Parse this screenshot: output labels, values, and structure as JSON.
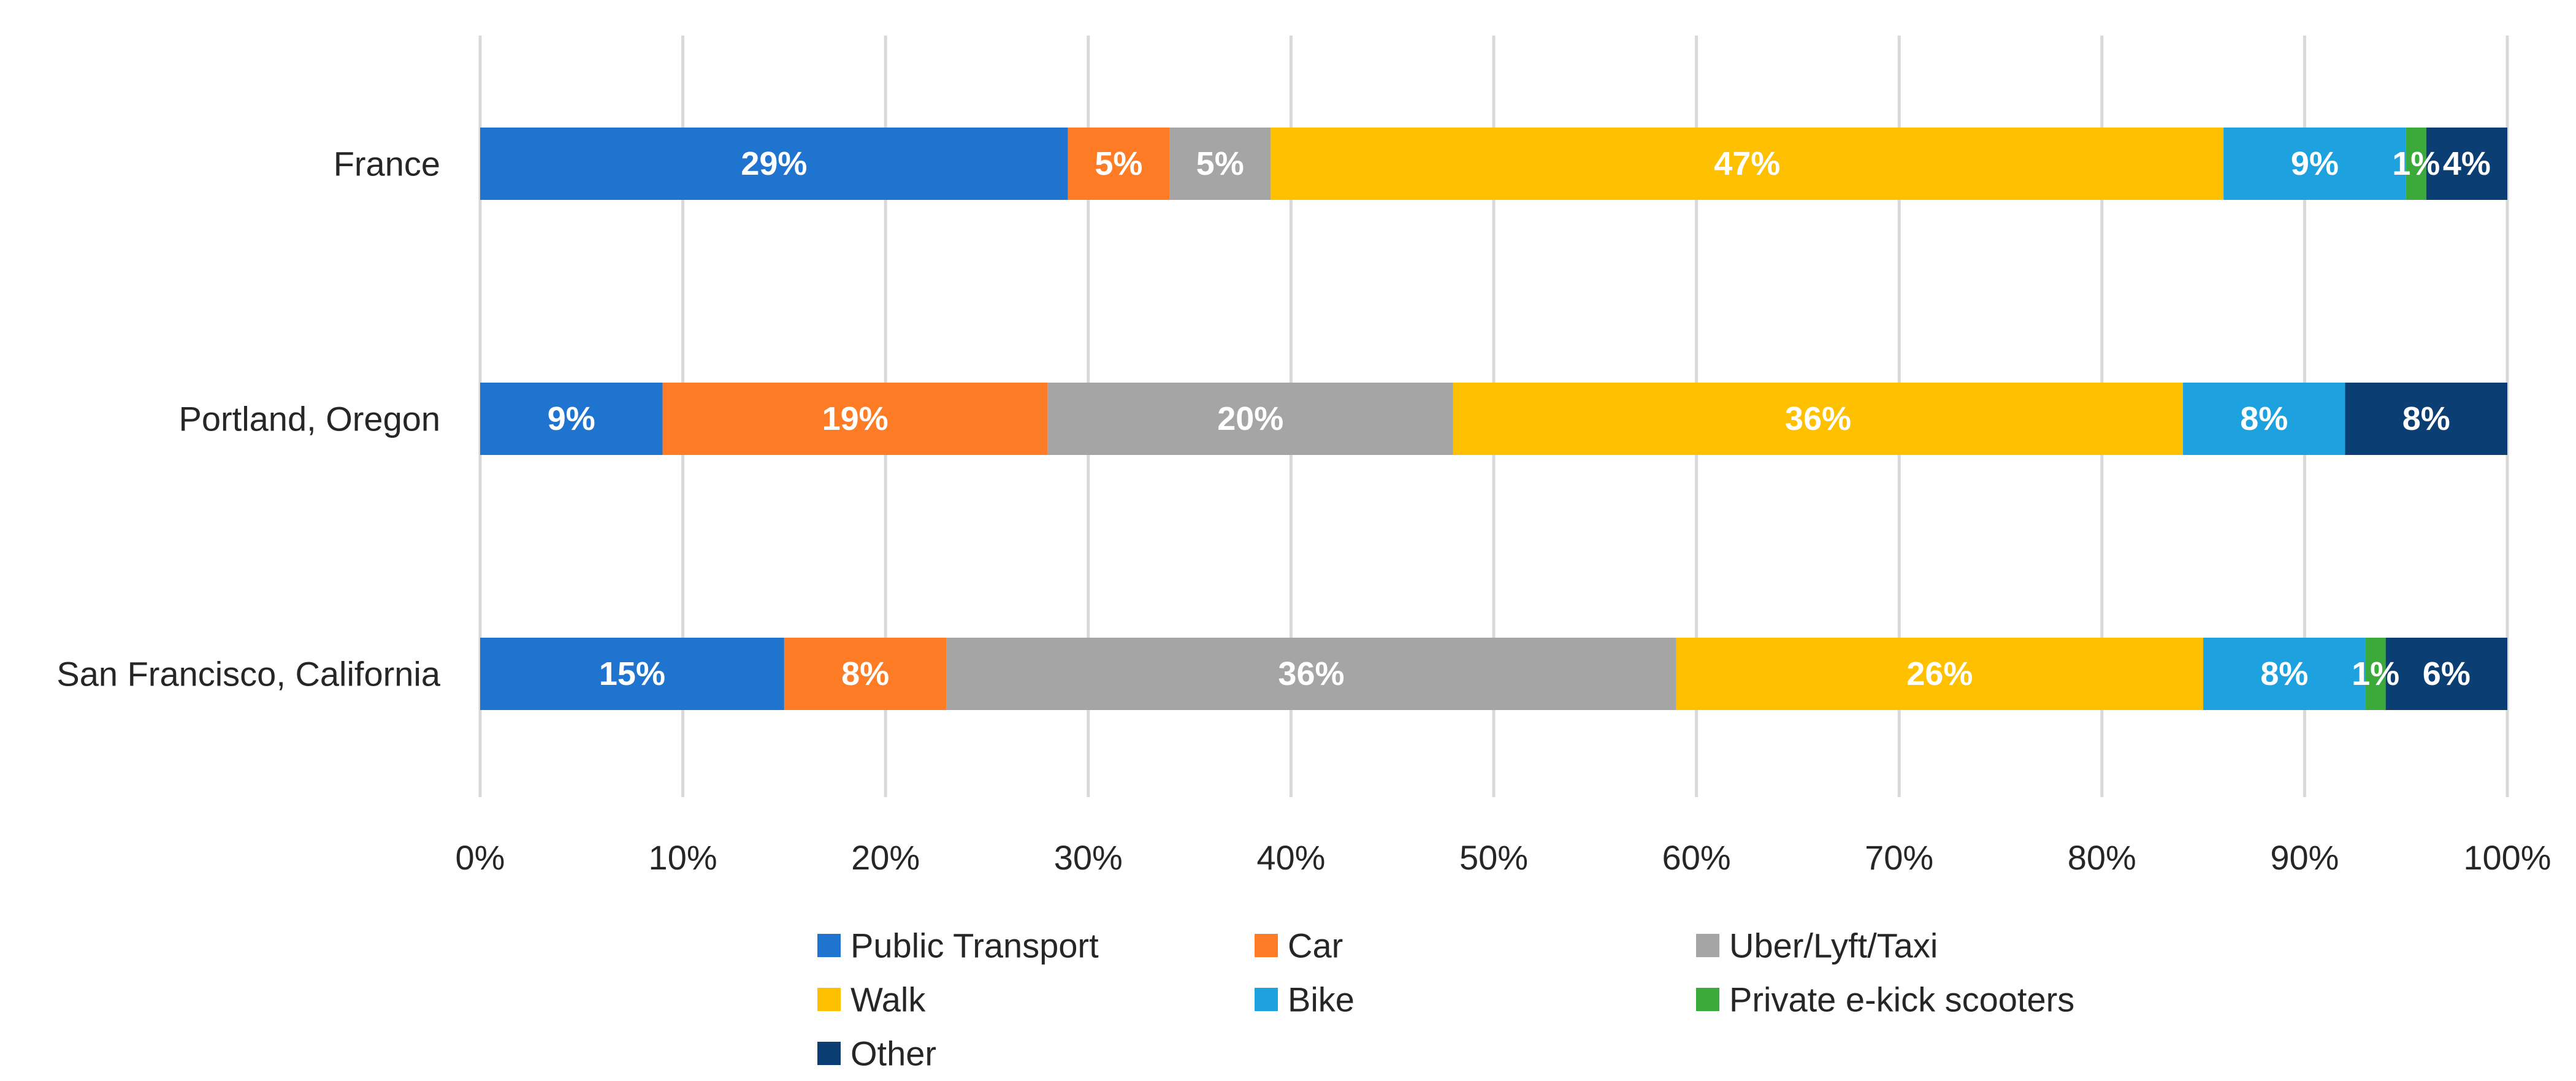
{
  "chart_data": {
    "type": "bar",
    "orientation": "horizontal",
    "stacked": "percent",
    "title": "",
    "xlabel": "",
    "ylabel": "",
    "xlim": [
      0,
      100
    ],
    "x_ticks": [
      0,
      10,
      20,
      30,
      40,
      50,
      60,
      70,
      80,
      90,
      100
    ],
    "tick_suffix": "%",
    "grid": "vertical",
    "legend_position": "bottom",
    "categories": [
      "France",
      "Portland, Oregon",
      "San Francisco, California"
    ],
    "series": [
      {
        "name": "Public Transport",
        "color": "#1F74CF",
        "values": [
          29,
          9,
          15
        ],
        "labels": [
          "29%",
          "9%",
          "15%"
        ]
      },
      {
        "name": "Car",
        "color": "#FF7C26",
        "values": [
          5,
          19,
          8
        ],
        "labels": [
          "5%",
          "19%",
          "8%"
        ]
      },
      {
        "name": "Uber/Lyft/Taxi",
        "color": "#A5A5A5",
        "values": [
          5,
          20,
          36
        ],
        "labels": [
          "5%",
          "20%",
          "36%"
        ]
      },
      {
        "name": "Walk",
        "color": "#FFC000",
        "values": [
          47,
          36,
          26
        ],
        "labels": [
          "47%",
          "36%",
          "26%"
        ]
      },
      {
        "name": "Bike",
        "color": "#1DA1DF",
        "values": [
          9,
          8,
          8
        ],
        "labels": [
          "9%",
          "8%",
          "8%"
        ]
      },
      {
        "name": "Private e-kick scooters",
        "color": "#3BAA3B",
        "values": [
          1,
          0,
          1
        ],
        "labels": [
          "1%",
          "",
          "1%"
        ]
      },
      {
        "name": "Other",
        "color": "#0B3E73",
        "values": [
          4,
          8,
          6
        ],
        "labels": [
          "4%",
          "8%",
          "6%"
        ]
      }
    ]
  }
}
